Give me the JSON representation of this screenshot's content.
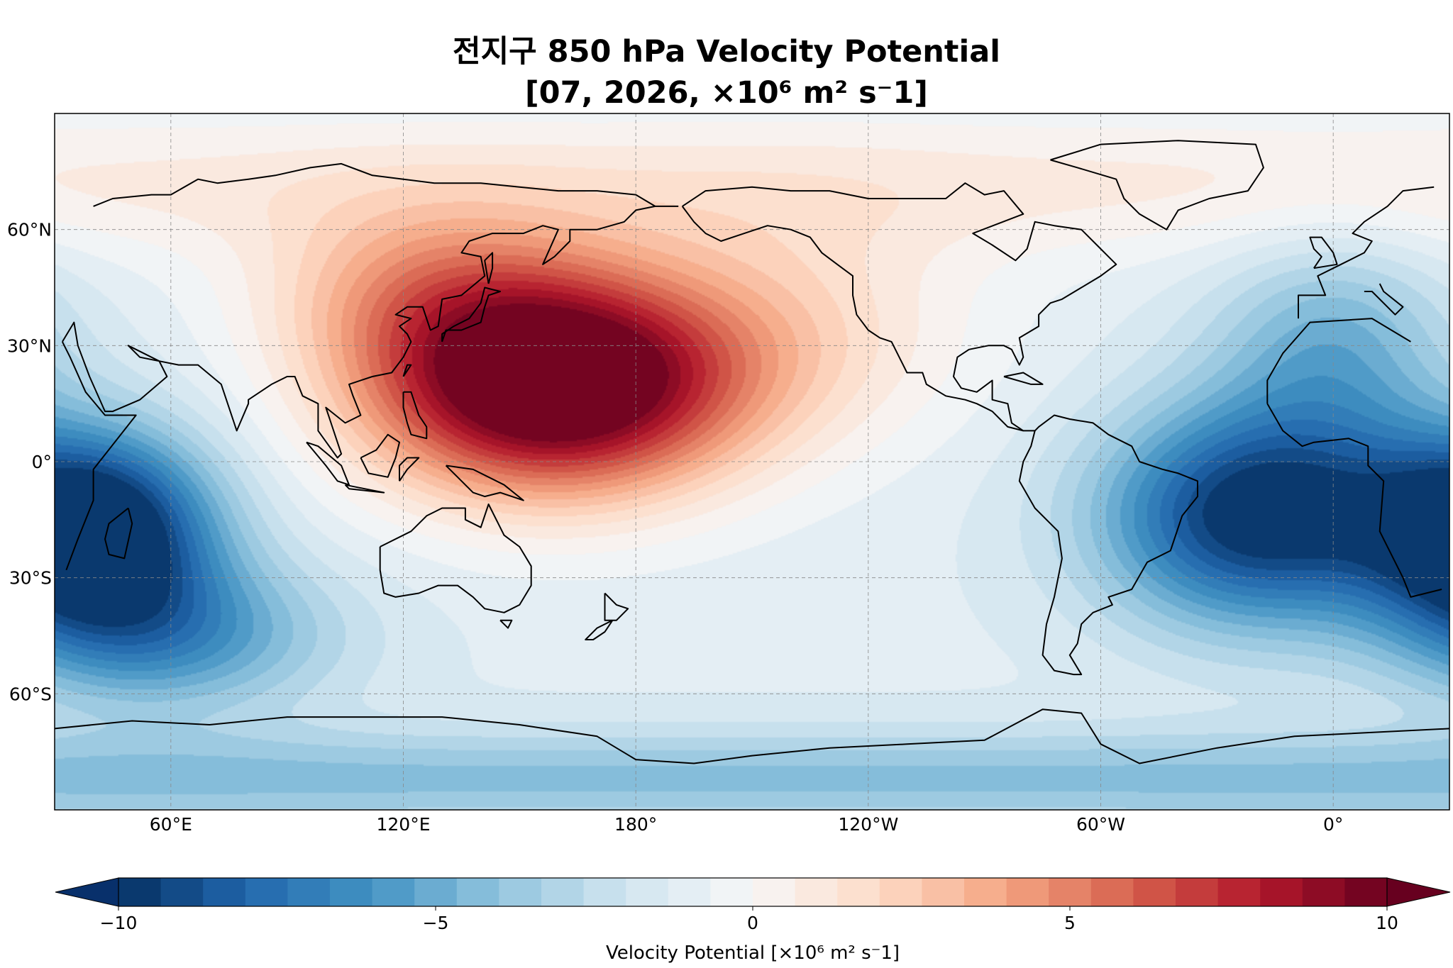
{
  "title": {
    "line1": "전지구 850 hPa Velocity Potential",
    "line2": "[07, 2026, ×10⁶ m² s⁻1]"
  },
  "map": {
    "projection": "PlateCarree",
    "central_longitude": 180,
    "lon_range": [
      30,
      390
    ],
    "lat_range": [
      -90,
      90
    ],
    "lon_ticks": [
      "60°E",
      "120°E",
      "180°",
      "120°W",
      "60°W",
      "0°"
    ],
    "lat_ticks": [
      "60°N",
      "30°N",
      "0°",
      "30°S",
      "60°S"
    ],
    "gridlines": "dashed",
    "coastlines": true
  },
  "colorbar": {
    "cmap": "RdBu_r",
    "levels": [
      -10,
      10
    ],
    "n_bins": 30,
    "extend": "both",
    "ticks": [
      "−10",
      "−5",
      "0",
      "5",
      "10"
    ],
    "label": "Velocity Potential [×10⁶ m² s⁻1]"
  },
  "colors": {
    "most_negative": "#08306b",
    "neutral": "#f7f7f7",
    "most_positive": "#67001f"
  },
  "features": [
    {
      "name": "max-west-pacific",
      "lon": 160,
      "lat": 18,
      "value": 10
    },
    {
      "name": "min-indian-ocean",
      "lon": 40,
      "lat": -18,
      "value": -10
    },
    {
      "name": "min-south-atlantic",
      "lon": -20,
      "lat": -15,
      "value": -9
    }
  ]
}
